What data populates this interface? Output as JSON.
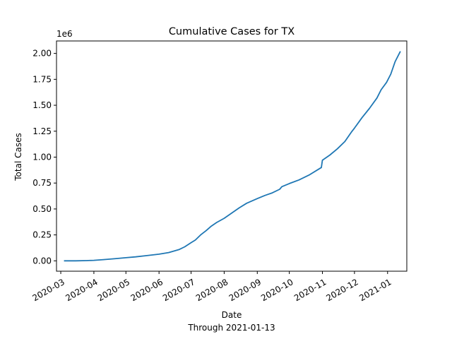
{
  "chart_data": {
    "type": "line",
    "title": "Cumulative Cases for TX",
    "xlabel": "Date",
    "xlabel_sub": "Through 2021-01-13",
    "ylabel": "Total Cases",
    "offset_label": "1e6",
    "xlim": [
      "2020-02-26",
      "2021-01-19"
    ],
    "ylim": [
      -0.1,
      2.12
    ],
    "x_ticks": [
      "2020-03-01",
      "2020-04-01",
      "2020-05-01",
      "2020-06-01",
      "2020-07-01",
      "2020-08-01",
      "2020-09-01",
      "2020-10-01",
      "2020-11-01",
      "2020-12-01",
      "2021-01-01"
    ],
    "x_tick_labels": [
      "2020-03",
      "2020-04",
      "2020-05",
      "2020-06",
      "2020-07",
      "2020-08",
      "2020-09",
      "2020-10",
      "2020-11",
      "2020-12",
      "2021-01"
    ],
    "y_ticks": [
      0,
      0.25,
      0.5,
      0.75,
      1.0,
      1.25,
      1.5,
      1.75,
      2.0
    ],
    "y_tick_labels": [
      "0.00",
      "0.25",
      "0.50",
      "0.75",
      "1.00",
      "1.25",
      "1.50",
      "1.75",
      "2.00"
    ],
    "grid": false,
    "legend": "none",
    "series": [
      {
        "color": "#1f77b4",
        "points": [
          [
            "2020-03-04",
            0.0
          ],
          [
            "2020-03-15",
            0.0
          ],
          [
            "2020-03-25",
            0.002
          ],
          [
            "2020-04-01",
            0.005
          ],
          [
            "2020-04-10",
            0.012
          ],
          [
            "2020-04-20",
            0.02
          ],
          [
            "2020-05-01",
            0.03
          ],
          [
            "2020-05-10",
            0.038
          ],
          [
            "2020-05-20",
            0.05
          ],
          [
            "2020-06-01",
            0.064
          ],
          [
            "2020-06-10",
            0.08
          ],
          [
            "2020-06-20",
            0.11
          ],
          [
            "2020-06-25",
            0.135
          ],
          [
            "2020-07-01",
            0.175
          ],
          [
            "2020-07-05",
            0.2
          ],
          [
            "2020-07-10",
            0.25
          ],
          [
            "2020-07-15",
            0.29
          ],
          [
            "2020-07-20",
            0.335
          ],
          [
            "2020-07-25",
            0.37
          ],
          [
            "2020-08-01",
            0.41
          ],
          [
            "2020-08-08",
            0.46
          ],
          [
            "2020-08-15",
            0.51
          ],
          [
            "2020-08-22",
            0.555
          ],
          [
            "2020-09-01",
            0.6
          ],
          [
            "2020-09-08",
            0.63
          ],
          [
            "2020-09-15",
            0.655
          ],
          [
            "2020-09-22",
            0.69
          ],
          [
            "2020-09-24",
            0.715
          ],
          [
            "2020-10-01",
            0.745
          ],
          [
            "2020-10-10",
            0.78
          ],
          [
            "2020-10-20",
            0.83
          ],
          [
            "2020-10-31",
            0.9
          ],
          [
            "2020-11-01",
            0.97
          ],
          [
            "2020-11-08",
            1.02
          ],
          [
            "2020-11-15",
            1.08
          ],
          [
            "2020-11-22",
            1.15
          ],
          [
            "2020-11-28",
            1.24
          ],
          [
            "2020-12-01",
            1.28
          ],
          [
            "2020-12-08",
            1.38
          ],
          [
            "2020-12-15",
            1.47
          ],
          [
            "2020-12-22",
            1.57
          ],
          [
            "2020-12-26",
            1.65
          ],
          [
            "2020-12-31",
            1.72
          ],
          [
            "2021-01-04",
            1.8
          ],
          [
            "2021-01-08",
            1.92
          ],
          [
            "2021-01-13",
            2.02
          ]
        ]
      }
    ]
  }
}
